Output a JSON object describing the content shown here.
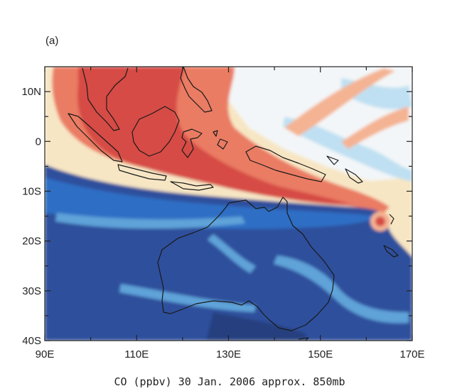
{
  "figure": {
    "panel_label": "(a)",
    "caption": "CO (ppbv) 30 Jan. 2006 approx. 850mb"
  },
  "map": {
    "lon_range": [
      90,
      170
    ],
    "lat_range": [
      -40,
      15
    ],
    "x_ticks": [
      {
        "lon": 90,
        "label": "90E"
      },
      {
        "lon": 110,
        "label": "110E"
      },
      {
        "lon": 130,
        "label": "130E"
      },
      {
        "lon": 150,
        "label": "150E"
      },
      {
        "lon": 170,
        "label": "170E"
      }
    ],
    "x_minor_ticks": [
      100,
      120,
      140,
      160
    ],
    "y_ticks": [
      {
        "lat": 10,
        "label": "10N"
      },
      {
        "lat": 0,
        "label": "0"
      },
      {
        "lat": -10,
        "label": "10S"
      },
      {
        "lat": -20,
        "label": "20S"
      },
      {
        "lat": -30,
        "label": "30S"
      },
      {
        "lat": -40,
        "label": "40S"
      }
    ],
    "y_minor_ticks": [
      5,
      -5,
      -15,
      -25,
      -35
    ],
    "colors": {
      "dark_blue": "#2d4f9c",
      "mid_blue": "#2f6ec4",
      "light_blue": "#5fa3d9",
      "pale_blue": "#bfe0f2",
      "white": "#f3f6f8",
      "cream": "#f7e6c4",
      "peach": "#f4b393",
      "salmon": "#ea7c63",
      "red": "#d64b45",
      "coastline": "#1a1a1a"
    }
  }
}
